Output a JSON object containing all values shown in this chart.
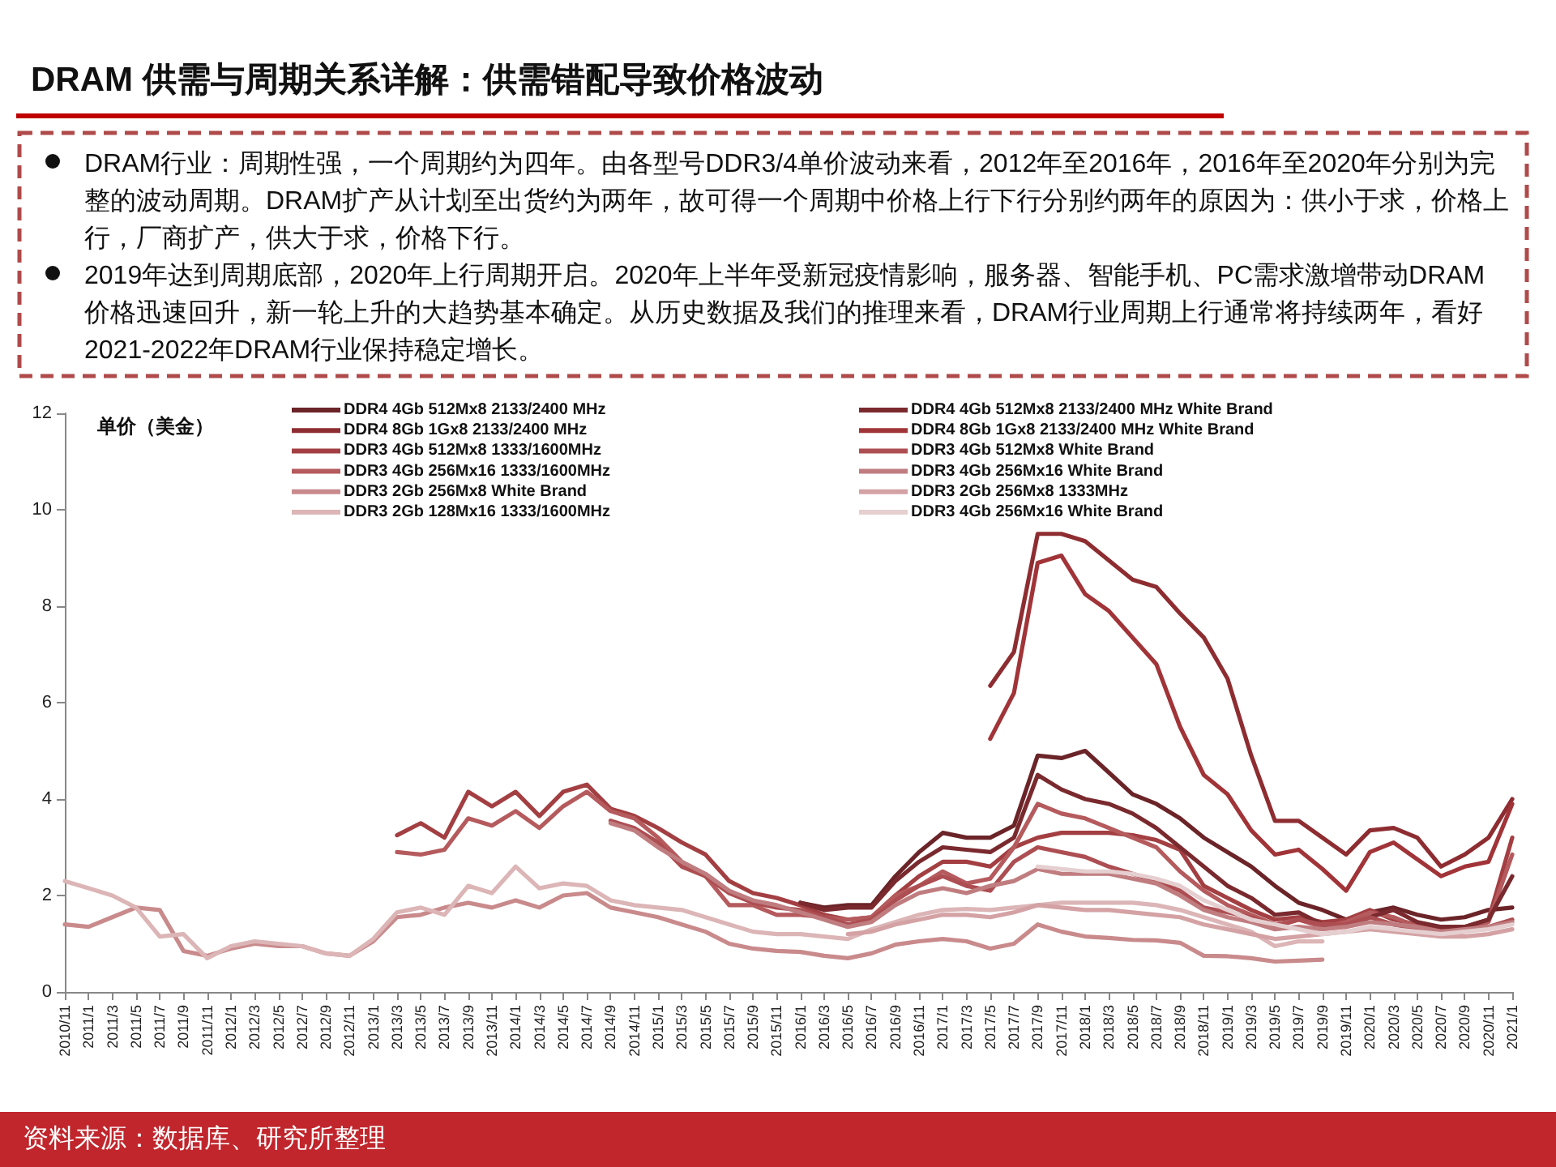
{
  "chart_data": {
    "type": "line",
    "title": "DRAM 供需与周期关系详解：供需错配导致价格波动",
    "ylabel": "单价（美金）",
    "annotations": [
      "DRAM行业：周期性强，一个周期约为四年。由各型号DDR3/4单价波动来看，2012年至2016年，2016年至2020年分别为完整的波动周期。DRAM扩产从计划至出货约为两年，故可得一个周期中价格上行下行分别约两年的原因为：供小于求，价格上行，厂商扩产，供大于求，价格下行。",
      "2019年达到周期底部，2020年上行周期开启。2020年上半年受新冠疫情影响，服务器、智能手机、PC需求激增带动DRAM价格迅速回升，新一轮上升的大趋势基本确定。从历史数据及我们的推理来看，DRAM行业周期上行通常将持续两年，看好2021-2022年DRAM行业保持稳定增长。",
      "资料来源：数据库、研究所整理"
    ],
    "categories": [
      "2010/11",
      "2011/1",
      "2011/3",
      "2011/5",
      "2011/7",
      "2011/9",
      "2011/11",
      "2012/1",
      "2012/3",
      "2012/5",
      "2012/7",
      "2012/9",
      "2012/11",
      "2013/1",
      "2013/3",
      "2013/5",
      "2013/7",
      "2013/9",
      "2013/11",
      "2014/1",
      "2014/3",
      "2014/5",
      "2014/7",
      "2014/9",
      "2014/11",
      "2015/1",
      "2015/3",
      "2015/5",
      "2015/7",
      "2015/9",
      "2015/11",
      "2016/1",
      "2016/3",
      "2016/5",
      "2016/7",
      "2016/9",
      "2016/11",
      "2017/1",
      "2017/3",
      "2017/5",
      "2017/7",
      "2017/9",
      "2017/11",
      "2018/1",
      "2018/3",
      "2018/5",
      "2018/7",
      "2018/9",
      "2018/11",
      "2019/1",
      "2019/3",
      "2019/5",
      "2019/7",
      "2019/9",
      "2019/11",
      "2020/1",
      "2020/3",
      "2020/5",
      "2020/7",
      "2020/9",
      "2020/11",
      "2021/1"
    ],
    "ylim": [
      0,
      12
    ],
    "yticks": [
      0,
      2,
      4,
      6,
      8,
      10,
      12
    ],
    "grid": false,
    "legend": "top",
    "marker": "none",
    "series": [
      {
        "name": "DDR4 4Gb 512Mx8 2133/2400 MHz",
        "color": "#6b2428",
        "values": [
          null,
          null,
          null,
          null,
          null,
          null,
          null,
          null,
          null,
          null,
          null,
          null,
          null,
          null,
          null,
          null,
          null,
          null,
          null,
          null,
          null,
          null,
          null,
          null,
          null,
          null,
          null,
          null,
          null,
          null,
          null,
          1.85,
          1.75,
          1.8,
          1.8,
          2.4,
          2.9,
          3.3,
          3.2,
          3.2,
          3.45,
          4.9,
          4.85,
          5.0,
          4.55,
          4.1,
          3.9,
          3.6,
          3.2,
          2.9,
          2.6,
          2.2,
          1.85,
          1.7,
          1.5,
          1.65,
          1.75,
          1.6,
          1.5,
          1.55,
          1.7,
          1.75
        ]
      },
      {
        "name": "DDR4 8Gb 1Gx8 2133/2400 MHz",
        "color": "#8e2d31",
        "values": [
          null,
          null,
          null,
          null,
          null,
          null,
          null,
          null,
          null,
          null,
          null,
          null,
          null,
          null,
          null,
          null,
          null,
          null,
          null,
          null,
          null,
          null,
          null,
          null,
          null,
          null,
          null,
          null,
          null,
          null,
          null,
          null,
          null,
          null,
          null,
          null,
          null,
          null,
          null,
          6.35,
          7.05,
          9.5,
          9.5,
          9.35,
          8.95,
          8.55,
          8.4,
          7.85,
          7.35,
          6.5,
          4.9,
          3.55,
          3.55,
          3.2,
          2.85,
          3.35,
          3.4,
          3.2,
          2.6,
          2.85,
          3.2,
          4.0
        ]
      },
      {
        "name": "DDR3 4Gb 512Mx8 1333/1600MHz",
        "color": "#a33f42",
        "values": [
          null,
          null,
          null,
          null,
          null,
          null,
          null,
          null,
          null,
          null,
          null,
          null,
          null,
          null,
          3.25,
          3.5,
          3.2,
          4.15,
          3.85,
          4.15,
          3.65,
          4.15,
          4.3,
          3.8,
          3.65,
          3.4,
          3.1,
          2.85,
          2.3,
          2.05,
          1.95,
          1.8,
          1.6,
          1.5,
          1.55,
          2.0,
          2.4,
          2.7,
          2.7,
          2.6,
          3.0,
          3.2,
          3.3,
          3.3,
          3.3,
          3.25,
          3.15,
          2.95,
          2.2,
          1.95,
          1.7,
          1.5,
          1.55,
          1.45,
          1.5,
          1.7,
          1.5,
          1.4,
          1.3,
          1.35,
          1.5,
          3.2
        ]
      },
      {
        "name": "DDR3 4Gb 256Mx16 1333/1600MHz",
        "color": "#b55a5d",
        "values": [
          null,
          null,
          null,
          null,
          null,
          null,
          null,
          null,
          null,
          null,
          null,
          null,
          null,
          null,
          2.9,
          2.85,
          2.95,
          3.6,
          3.45,
          3.75,
          3.4,
          3.85,
          4.15,
          3.75,
          3.6,
          3.2,
          2.7,
          2.4,
          1.8,
          1.8,
          1.6,
          1.6,
          1.55,
          1.5,
          1.55,
          2.0,
          2.2,
          2.5,
          2.25,
          2.35,
          3.0,
          3.9,
          3.7,
          3.6,
          3.4,
          3.2,
          3.0,
          2.5,
          2.1,
          1.8,
          1.6,
          1.4,
          1.5,
          1.35,
          1.45,
          1.65,
          1.55,
          1.35,
          1.25,
          1.3,
          1.45,
          2.85
        ]
      },
      {
        "name": "DDR3 2Gb 256Mx8 White Brand",
        "color": "#c98a8c",
        "values": [
          1.4,
          1.35,
          1.55,
          1.75,
          1.7,
          0.85,
          0.75,
          0.9,
          1.0,
          0.95,
          0.95,
          0.8,
          0.75,
          1.05,
          1.55,
          1.6,
          1.75,
          1.85,
          1.75,
          1.9,
          1.75,
          2.0,
          2.05,
          1.75,
          1.65,
          1.55,
          1.4,
          1.25,
          1.0,
          0.9,
          0.85,
          0.83,
          0.75,
          0.7,
          0.8,
          0.98,
          1.05,
          1.1,
          1.05,
          0.9,
          1.0,
          1.4,
          1.25,
          1.15,
          1.12,
          1.08,
          1.07,
          1.02,
          0.75,
          0.74,
          0.7,
          0.63,
          0.65,
          0.67,
          null,
          null,
          null,
          null,
          null,
          null,
          null,
          null
        ]
      },
      {
        "name": "DDR3 2Gb 128Mx16 1333/1600MHz",
        "color": "#dcb5b6",
        "values": [
          2.3,
          2.15,
          2.0,
          1.75,
          1.15,
          1.2,
          0.7,
          0.95,
          1.05,
          1.0,
          0.95,
          0.8,
          0.75,
          1.1,
          1.65,
          1.75,
          1.6,
          2.2,
          2.05,
          2.6,
          2.15,
          2.25,
          2.2,
          1.9,
          1.8,
          1.75,
          1.7,
          1.55,
          1.4,
          1.25,
          1.2,
          1.2,
          1.15,
          1.1,
          1.3,
          1.45,
          1.6,
          1.7,
          1.72,
          1.7,
          1.75,
          1.8,
          1.85,
          1.85,
          1.85,
          1.85,
          1.8,
          1.7,
          1.55,
          1.4,
          1.25,
          0.95,
          1.05,
          1.05,
          null,
          null,
          null,
          null,
          null,
          null,
          null,
          null
        ]
      },
      {
        "name": "DDR4 4Gb 512Mx8 2133/2400 MHz White Brand",
        "color": "#7a2a2e",
        "values": [
          null,
          null,
          null,
          null,
          null,
          null,
          null,
          null,
          null,
          null,
          null,
          null,
          null,
          null,
          null,
          null,
          null,
          null,
          null,
          null,
          null,
          null,
          null,
          null,
          null,
          null,
          null,
          null,
          null,
          null,
          null,
          1.85,
          1.7,
          1.75,
          1.75,
          2.3,
          2.7,
          3.0,
          2.95,
          2.9,
          3.2,
          4.5,
          4.2,
          4.0,
          3.9,
          3.7,
          3.4,
          3.0,
          2.6,
          2.2,
          1.95,
          1.6,
          1.65,
          1.4,
          1.35,
          1.55,
          1.7,
          1.45,
          1.35,
          1.35,
          1.5,
          2.4
        ]
      },
      {
        "name": "DDR4 8Gb 1Gx8 2133/2400 MHz White Brand",
        "color": "#a13438",
        "values": [
          null,
          null,
          null,
          null,
          null,
          null,
          null,
          null,
          null,
          null,
          null,
          null,
          null,
          null,
          null,
          null,
          null,
          null,
          null,
          null,
          null,
          null,
          null,
          null,
          null,
          null,
          null,
          null,
          null,
          null,
          null,
          null,
          null,
          null,
          null,
          null,
          null,
          null,
          null,
          5.25,
          6.2,
          8.9,
          9.05,
          8.25,
          7.9,
          7.35,
          6.8,
          5.5,
          4.5,
          4.1,
          3.35,
          2.85,
          2.95,
          2.55,
          2.1,
          2.9,
          3.1,
          2.75,
          2.4,
          2.6,
          2.7,
          3.9
        ]
      },
      {
        "name": "DDR3 4Gb 512Mx8 White Brand",
        "color": "#ad4e52",
        "values": [
          null,
          null,
          null,
          null,
          null,
          null,
          null,
          null,
          null,
          null,
          null,
          null,
          null,
          null,
          null,
          null,
          null,
          null,
          null,
          null,
          null,
          null,
          null,
          3.55,
          3.4,
          3.1,
          2.6,
          2.4,
          2.05,
          1.85,
          1.75,
          1.7,
          1.55,
          1.4,
          1.5,
          1.9,
          2.2,
          2.4,
          2.2,
          2.1,
          2.7,
          3.0,
          2.9,
          2.8,
          2.6,
          2.45,
          2.3,
          2.1,
          1.75,
          1.65,
          1.55,
          1.35,
          1.5,
          1.4,
          1.4,
          1.55,
          1.4,
          1.3,
          1.2,
          1.25,
          1.35,
          1.5
        ]
      },
      {
        "name": "DDR3 4Gb 256Mx16 White Brand",
        "color": "#c07d80",
        "values": [
          null,
          null,
          null,
          null,
          null,
          null,
          null,
          null,
          null,
          null,
          null,
          null,
          null,
          null,
          null,
          null,
          null,
          null,
          null,
          null,
          null,
          null,
          null,
          3.5,
          3.35,
          3.0,
          2.7,
          2.45,
          2.1,
          1.9,
          1.8,
          1.65,
          1.5,
          1.35,
          1.45,
          1.8,
          2.05,
          2.15,
          2.05,
          2.2,
          2.3,
          2.55,
          2.45,
          2.45,
          2.45,
          2.35,
          2.25,
          2.0,
          1.7,
          1.55,
          1.45,
          1.3,
          1.35,
          1.3,
          1.35,
          1.45,
          1.4,
          1.35,
          1.25,
          1.3,
          1.35,
          1.45
        ]
      },
      {
        "name": "DDR3 2Gb 256Mx8 1333MHz",
        "color": "#d4a2a4",
        "values": [
          null,
          null,
          null,
          null,
          null,
          null,
          null,
          null,
          null,
          null,
          null,
          null,
          null,
          null,
          null,
          null,
          null,
          null,
          null,
          null,
          null,
          null,
          null,
          null,
          null,
          null,
          null,
          null,
          null,
          null,
          null,
          null,
          null,
          1.2,
          1.25,
          1.4,
          1.5,
          1.6,
          1.6,
          1.55,
          1.65,
          1.8,
          1.75,
          1.7,
          1.7,
          1.65,
          1.6,
          1.55,
          1.4,
          1.3,
          1.2,
          1.1,
          1.15,
          1.2,
          1.25,
          1.3,
          1.25,
          1.2,
          1.15,
          1.15,
          1.2,
          1.3
        ]
      },
      {
        "name": "DDR3 4Gb 256Mx16 White Brand",
        "color": "#e5cfd0",
        "values": [
          null,
          null,
          null,
          null,
          null,
          null,
          null,
          null,
          null,
          null,
          null,
          null,
          null,
          null,
          null,
          null,
          null,
          null,
          null,
          null,
          null,
          null,
          null,
          null,
          null,
          null,
          null,
          null,
          null,
          null,
          null,
          null,
          null,
          null,
          null,
          null,
          null,
          null,
          null,
          null,
          null,
          2.6,
          2.55,
          2.5,
          2.5,
          2.45,
          2.35,
          2.2,
          1.9,
          1.7,
          1.5,
          1.4,
          1.3,
          1.2,
          1.25,
          1.35,
          1.3,
          1.25,
          1.2,
          1.25,
          1.3,
          1.4
        ]
      }
    ]
  }
}
